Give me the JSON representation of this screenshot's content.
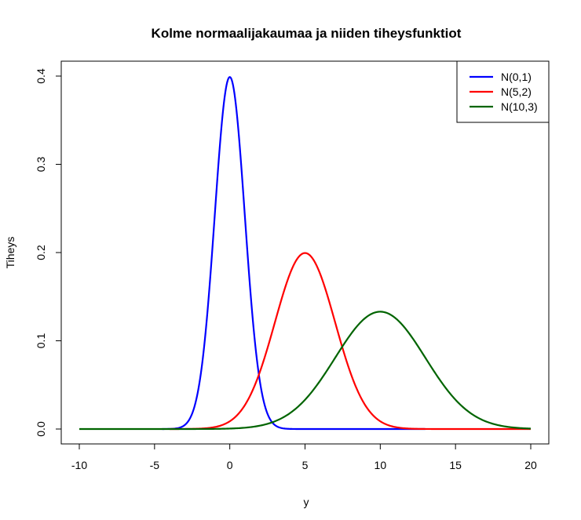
{
  "chart_data": {
    "type": "line",
    "title": "Kolme normaalijakaumaa ja niiden tiheysfunktiot",
    "xlabel": "y",
    "ylabel": "Tiheys",
    "xlim": [
      -10,
      20
    ],
    "ylim": [
      0,
      0.4
    ],
    "x_ticks": [
      -10,
      -5,
      0,
      5,
      10,
      15,
      20
    ],
    "y_ticks": [
      0.0,
      0.1,
      0.2,
      0.3,
      0.4
    ],
    "y_tick_labels": [
      "0.0",
      "0.1",
      "0.2",
      "0.3",
      "0.4"
    ],
    "grid": false,
    "legend_position": "top-right",
    "series": [
      {
        "name": "N(0,1)",
        "color": "#0000FF",
        "mean": 0,
        "sd": 1,
        "x_range": [
          -4.5,
          13
        ]
      },
      {
        "name": "N(5,2)",
        "color": "#FF0000",
        "mean": 5,
        "sd": 2,
        "x_range": [
          -4,
          20
        ]
      },
      {
        "name": "N(10,3)",
        "color": "#006400",
        "mean": 10,
        "sd": 3,
        "x_range": [
          -10,
          20
        ]
      }
    ]
  }
}
